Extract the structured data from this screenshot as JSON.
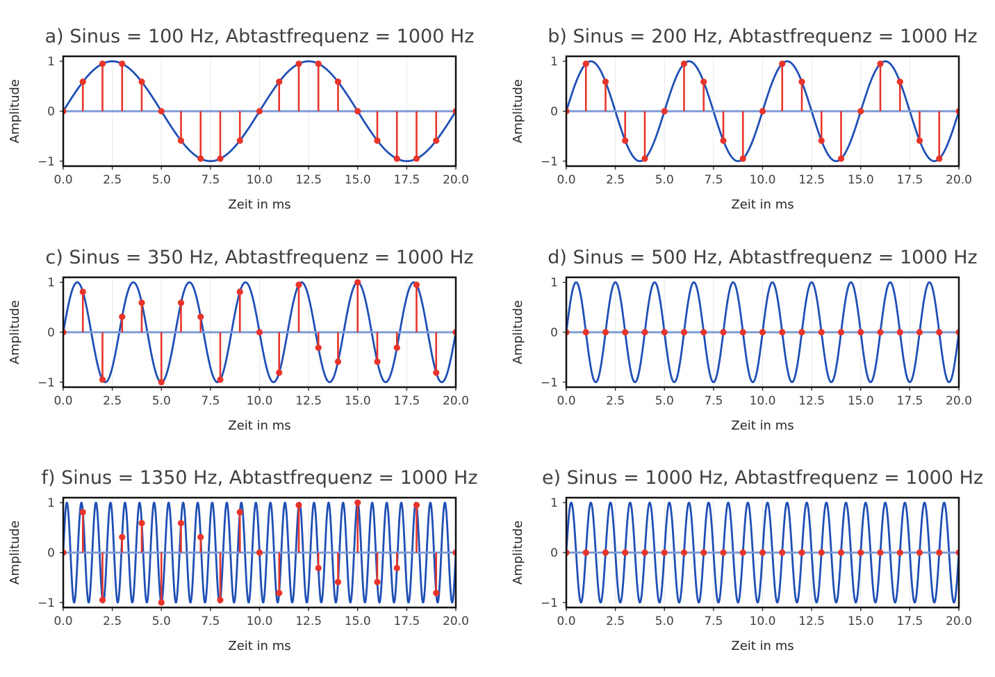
{
  "chart_data": [
    {
      "type": "line",
      "title": "a) Sinus = 100 Hz, Abtastfrequenz = 1000 Hz",
      "xlabel": "Zeit in ms",
      "ylabel": "Amplitude",
      "xlim": [
        0,
        20
      ],
      "ylim": [
        -1.1,
        1.1
      ],
      "signal_frequency_hz": 100,
      "sampling_frequency_hz": 1000,
      "x_ticks": [
        "0.0",
        "2.5",
        "5.0",
        "7.5",
        "10.0",
        "12.5",
        "15.0",
        "17.5",
        "20.0"
      ],
      "y_ticks": [
        "1",
        "0",
        "−1"
      ],
      "grid": true,
      "series": [
        {
          "role": "continuous sine",
          "color": "#1f4fb5"
        },
        {
          "role": "samples (stem)",
          "color": "#e8342a",
          "x": [
            0,
            1,
            2,
            3,
            4,
            5,
            6,
            7,
            8,
            9,
            10,
            11,
            12,
            13,
            14,
            15,
            16,
            17,
            18,
            19,
            20
          ],
          "y": [
            0,
            0.59,
            0.95,
            0.95,
            0.59,
            0,
            -0.59,
            -0.95,
            -0.95,
            -0.59,
            0,
            0.59,
            0.95,
            0.95,
            0.59,
            0,
            -0.59,
            -0.95,
            -0.95,
            -0.59,
            0
          ]
        }
      ]
    },
    {
      "type": "line",
      "title": "b) Sinus = 200 Hz, Abtastfrequenz = 1000 Hz",
      "xlabel": "Zeit in ms",
      "ylabel": "Amplitude",
      "xlim": [
        0,
        20
      ],
      "ylim": [
        -1.1,
        1.1
      ],
      "signal_frequency_hz": 200,
      "sampling_frequency_hz": 1000,
      "x_ticks": [
        "0.0",
        "2.5",
        "5.0",
        "7.5",
        "10.0",
        "12.5",
        "15.0",
        "17.5",
        "20.0"
      ],
      "y_ticks": [
        "1",
        "0",
        "−1"
      ],
      "grid": true,
      "series": [
        {
          "role": "continuous sine",
          "color": "#1f4fb5"
        },
        {
          "role": "samples (stem)",
          "color": "#e8342a",
          "x": [
            0,
            1,
            2,
            3,
            4,
            5,
            6,
            7,
            8,
            9,
            10,
            11,
            12,
            13,
            14,
            15,
            16,
            17,
            18,
            19,
            20
          ],
          "y": [
            0,
            0.95,
            0.59,
            -0.59,
            -0.95,
            0,
            0.95,
            0.59,
            -0.59,
            -0.95,
            0,
            0.95,
            0.59,
            -0.59,
            -0.95,
            0,
            0.95,
            0.59,
            -0.59,
            -0.95,
            0
          ]
        }
      ]
    },
    {
      "type": "line",
      "title": "c) Sinus = 350 Hz, Abtastfrequenz = 1000 Hz",
      "xlabel": "Zeit in ms",
      "ylabel": "Amplitude",
      "xlim": [
        0,
        20
      ],
      "ylim": [
        -1.1,
        1.1
      ],
      "signal_frequency_hz": 350,
      "sampling_frequency_hz": 1000,
      "x_ticks": [
        "0.0",
        "2.5",
        "5.0",
        "7.5",
        "10.0",
        "12.5",
        "15.0",
        "17.5",
        "20.0"
      ],
      "y_ticks": [
        "1",
        "0",
        "−1"
      ],
      "grid": true,
      "series": [
        {
          "role": "continuous sine",
          "color": "#1f4fb5"
        },
        {
          "role": "samples (stem)",
          "color": "#e8342a",
          "x": [
            0,
            1,
            2,
            3,
            4,
            5,
            6,
            7,
            8,
            9,
            10,
            11,
            12,
            13,
            14,
            15,
            16,
            17,
            18,
            19,
            20
          ],
          "y": [
            0,
            0.81,
            -0.95,
            0.31,
            0.59,
            -1,
            0.59,
            0.31,
            -0.95,
            0.81,
            0,
            -0.81,
            0.95,
            -0.31,
            -0.59,
            1,
            -0.59,
            -0.31,
            0.95,
            -0.81,
            0
          ]
        }
      ]
    },
    {
      "type": "line",
      "title": "d) Sinus = 500 Hz, Abtastfrequenz = 1000 Hz",
      "xlabel": "Zeit in ms",
      "ylabel": "Amplitude",
      "xlim": [
        0,
        20
      ],
      "ylim": [
        -1.1,
        1.1
      ],
      "signal_frequency_hz": 500,
      "sampling_frequency_hz": 1000,
      "x_ticks": [
        "0.0",
        "2.5",
        "5.0",
        "7.5",
        "10.0",
        "12.5",
        "15.0",
        "17.5",
        "20.0"
      ],
      "y_ticks": [
        "1",
        "0",
        "−1"
      ],
      "grid": true,
      "series": [
        {
          "role": "continuous sine",
          "color": "#1f4fb5"
        },
        {
          "role": "samples (stem)",
          "color": "#e8342a",
          "x": [
            0,
            1,
            2,
            3,
            4,
            5,
            6,
            7,
            8,
            9,
            10,
            11,
            12,
            13,
            14,
            15,
            16,
            17,
            18,
            19,
            20
          ],
          "y": [
            0,
            0,
            0,
            0,
            0,
            0,
            0,
            0,
            0,
            0,
            0,
            0,
            0,
            0,
            0,
            0,
            0,
            0,
            0,
            0,
            0
          ]
        }
      ]
    },
    {
      "type": "line",
      "title": "f) Sinus = 1350 Hz, Abtastfrequenz = 1000 Hz",
      "xlabel": "Zeit in ms",
      "ylabel": "Amplitude",
      "xlim": [
        0,
        20
      ],
      "ylim": [
        -1.1,
        1.1
      ],
      "signal_frequency_hz": 1350,
      "sampling_frequency_hz": 1000,
      "x_ticks": [
        "0.0",
        "2.5",
        "5.0",
        "7.5",
        "10.0",
        "12.5",
        "15.0",
        "17.5",
        "20.0"
      ],
      "y_ticks": [
        "1",
        "0",
        "−1"
      ],
      "grid": true,
      "series": [
        {
          "role": "continuous sine",
          "color": "#1f4fb5"
        },
        {
          "role": "samples (stem)",
          "color": "#e8342a",
          "x": [
            0,
            1,
            2,
            3,
            4,
            5,
            6,
            7,
            8,
            9,
            10,
            11,
            12,
            13,
            14,
            15,
            16,
            17,
            18,
            19,
            20
          ],
          "y": [
            0,
            0.81,
            -0.95,
            0.31,
            0.59,
            -1,
            0.59,
            0.31,
            -0.95,
            0.81,
            0,
            -0.81,
            0.95,
            -0.31,
            -0.59,
            1,
            -0.59,
            -0.31,
            0.95,
            -0.81,
            0
          ]
        }
      ]
    },
    {
      "type": "line",
      "title": "e) Sinus = 1000 Hz, Abtastfrequenz = 1000 Hz",
      "xlabel": "Zeit in ms",
      "ylabel": "Amplitude",
      "xlim": [
        0,
        20
      ],
      "ylim": [
        -1.1,
        1.1
      ],
      "signal_frequency_hz": 1000,
      "sampling_frequency_hz": 1000,
      "x_ticks": [
        "0.0",
        "2.5",
        "5.0",
        "7.5",
        "10.0",
        "12.5",
        "15.0",
        "17.5",
        "20.0"
      ],
      "y_ticks": [
        "1",
        "0",
        "−1"
      ],
      "grid": true,
      "series": [
        {
          "role": "continuous sine",
          "color": "#1f4fb5"
        },
        {
          "role": "samples (stem)",
          "color": "#e8342a",
          "x": [
            0,
            1,
            2,
            3,
            4,
            5,
            6,
            7,
            8,
            9,
            10,
            11,
            12,
            13,
            14,
            15,
            16,
            17,
            18,
            19,
            20
          ],
          "y": [
            0,
            0,
            0,
            0,
            0,
            0,
            0,
            0,
            0,
            0,
            0,
            0,
            0,
            0,
            0,
            0,
            0,
            0,
            0,
            0,
            0
          ]
        }
      ]
    }
  ]
}
